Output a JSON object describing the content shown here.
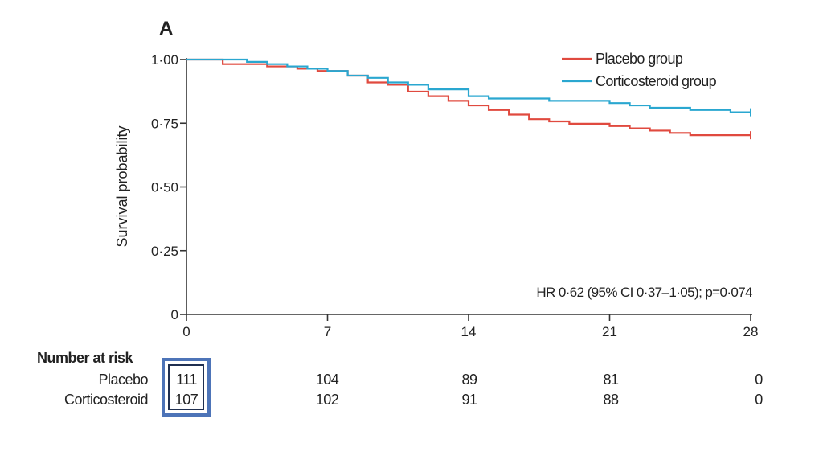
{
  "panel_label": "A",
  "chart_data": {
    "type": "line",
    "title": "A",
    "xlabel": "",
    "ylabel": "Survival probability",
    "xlim": [
      0,
      28
    ],
    "ylim": [
      0,
      1
    ],
    "xticks": [
      0,
      7,
      14,
      21,
      28
    ],
    "xtick_labels": [
      "0",
      "7",
      "14",
      "21",
      "28"
    ],
    "yticks": [
      0,
      0.25,
      0.5,
      0.75,
      1.0
    ],
    "ytick_labels": [
      "0",
      "0·25",
      "0·50",
      "0·75",
      "1·00"
    ],
    "legend_position": "top-right",
    "series": [
      {
        "name": "Placebo group",
        "color": "#e04a3f",
        "x": [
          0,
          1.8,
          4,
          5.5,
          6.5,
          8,
          9,
          10,
          11,
          12,
          13,
          14,
          15,
          16,
          17,
          18,
          19,
          20,
          21,
          22,
          23,
          24,
          25,
          28
        ],
        "y": [
          1.0,
          0.982,
          0.973,
          0.964,
          0.955,
          0.937,
          0.91,
          0.901,
          0.874,
          0.856,
          0.838,
          0.82,
          0.802,
          0.784,
          0.766,
          0.757,
          0.748,
          0.748,
          0.739,
          0.73,
          0.721,
          0.712,
          0.703,
          0.703
        ]
      },
      {
        "name": "Corticosteroid group",
        "color": "#2aa7d0",
        "x": [
          0,
          3,
          4,
          5,
          6,
          7,
          8,
          9,
          10,
          11,
          12,
          14,
          15,
          17,
          18,
          19,
          21,
          22,
          23,
          24,
          25,
          27,
          28
        ],
        "y": [
          1.0,
          0.991,
          0.982,
          0.973,
          0.964,
          0.955,
          0.937,
          0.928,
          0.91,
          0.901,
          0.883,
          0.856,
          0.847,
          0.847,
          0.838,
          0.838,
          0.829,
          0.82,
          0.811,
          0.811,
          0.802,
          0.793,
          0.793
        ]
      }
    ],
    "annotation": "HR 0·62 (95% CI 0·37–1·05); p=0·074"
  },
  "risk_table": {
    "title": "Number at risk",
    "rows": [
      {
        "label": "Placebo",
        "values": [
          "111",
          "104",
          "89",
          "81",
          "0"
        ]
      },
      {
        "label": "Corticosteroid",
        "values": [
          "107",
          "102",
          "91",
          "88",
          "0"
        ]
      }
    ]
  }
}
